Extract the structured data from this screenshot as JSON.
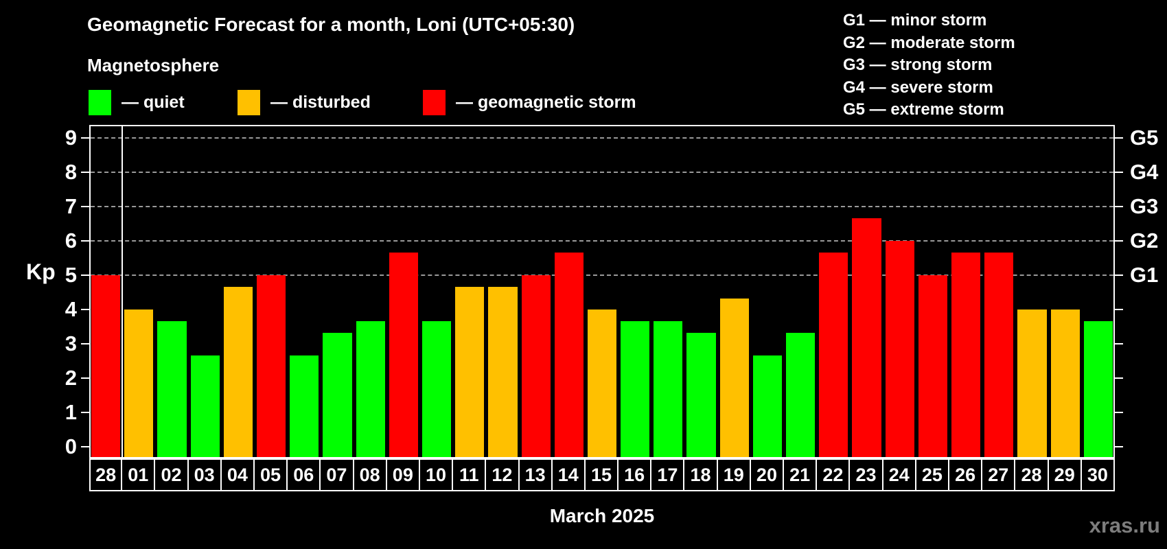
{
  "header": {
    "title": "Geomagnetic Forecast for a month, Loni (UTC+05:30)",
    "subtitle": "Magnetosphere"
  },
  "legend": {
    "items": [
      {
        "key": "quiet",
        "label": "— quiet",
        "color": "#00ff00"
      },
      {
        "key": "disturbed",
        "label": "— disturbed",
        "color": "#ffc000"
      },
      {
        "key": "storm",
        "label": "— geomagnetic storm",
        "color": "#ff0000"
      }
    ]
  },
  "g_legend": {
    "items": [
      "G1 — minor storm",
      "G2 — moderate storm",
      "G3 — strong storm",
      "G4 — severe storm",
      "G5 — extreme storm"
    ]
  },
  "chart_data": {
    "type": "bar",
    "title": "Geomagnetic Forecast for a month, Loni (UTC+05:30)",
    "subtitle": "Magnetosphere",
    "xlabel": "March 2025",
    "ylabel": "Kp",
    "ylim": [
      0,
      9
    ],
    "y_ticks": [
      0,
      1,
      2,
      3,
      4,
      5,
      6,
      7,
      8,
      9
    ],
    "gridlines_at": [
      5,
      6,
      7,
      8,
      9
    ],
    "grid": "dashed horizontal at storm levels only",
    "month_boundary_after_index": 0,
    "categories": [
      "28",
      "01",
      "02",
      "03",
      "04",
      "05",
      "06",
      "07",
      "08",
      "09",
      "10",
      "11",
      "12",
      "13",
      "14",
      "15",
      "16",
      "17",
      "18",
      "19",
      "20",
      "21",
      "22",
      "23",
      "24",
      "25",
      "26",
      "27",
      "28",
      "29",
      "30"
    ],
    "values": [
      5.0,
      4.0,
      3.67,
      2.67,
      4.67,
      5.0,
      2.67,
      3.33,
      3.67,
      5.67,
      3.67,
      4.67,
      4.67,
      5.0,
      5.67,
      4.0,
      3.67,
      3.67,
      3.33,
      4.33,
      2.67,
      3.33,
      5.67,
      6.67,
      6.0,
      5.0,
      5.67,
      5.67,
      4.0,
      4.0,
      3.67
    ],
    "statuses": [
      "storm",
      "disturbed",
      "quiet",
      "quiet",
      "disturbed",
      "storm",
      "quiet",
      "quiet",
      "quiet",
      "storm",
      "quiet",
      "disturbed",
      "disturbed",
      "storm",
      "storm",
      "disturbed",
      "quiet",
      "quiet",
      "quiet",
      "disturbed",
      "quiet",
      "quiet",
      "storm",
      "storm",
      "storm",
      "storm",
      "storm",
      "storm",
      "disturbed",
      "disturbed",
      "quiet"
    ],
    "right_axis": [
      {
        "label": "G1",
        "kp": 5
      },
      {
        "label": "G2",
        "kp": 6
      },
      {
        "label": "G3",
        "kp": 7
      },
      {
        "label": "G4",
        "kp": 8
      },
      {
        "label": "G5",
        "kp": 9
      }
    ],
    "legend_position": "top"
  },
  "footer": {
    "watermark": "xras.ru"
  },
  "colors": {
    "quiet": "#00ff00",
    "disturbed": "#ffc000",
    "storm": "#ff0000",
    "background": "#000000",
    "text": "#ffffff",
    "gridline": "#9a9a9a",
    "frame": "#ffffff",
    "watermark": "#7d7d7d"
  }
}
